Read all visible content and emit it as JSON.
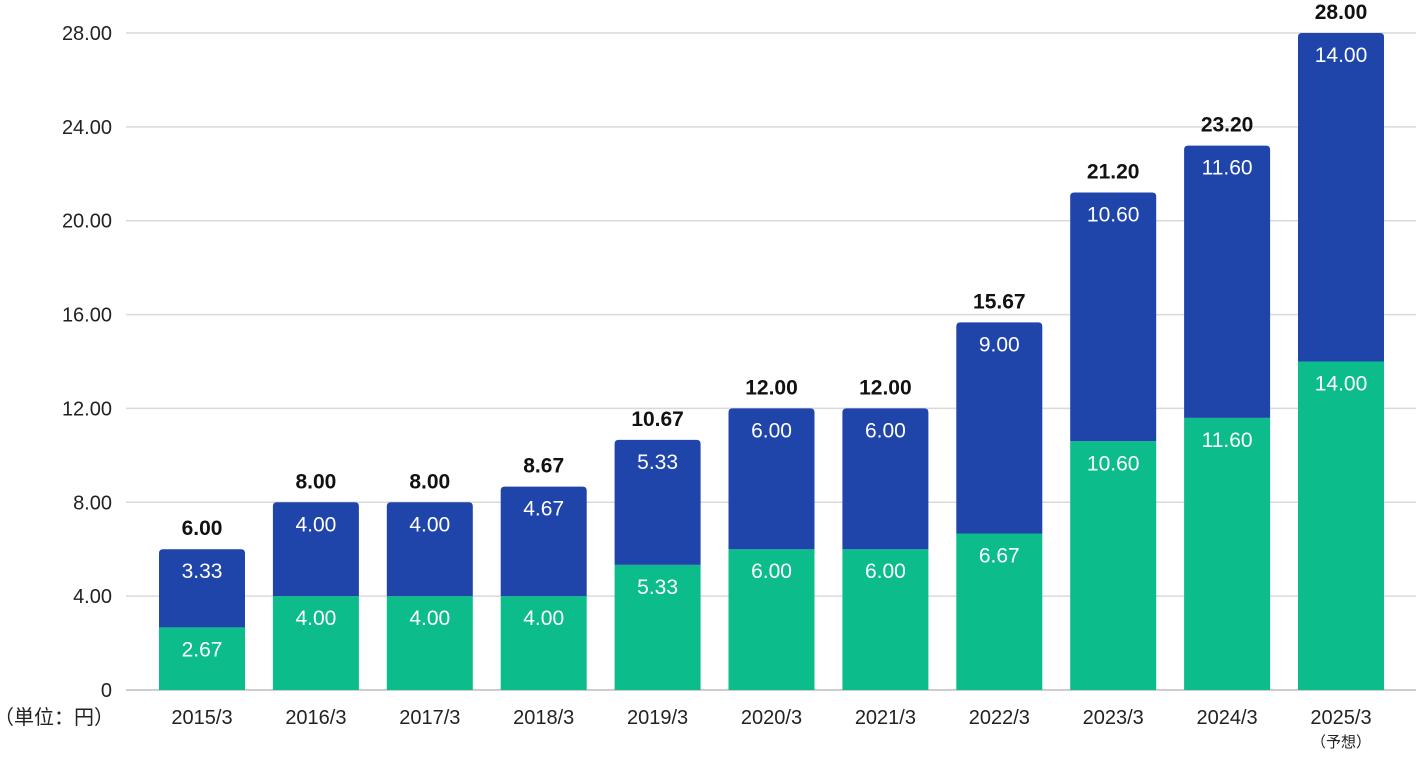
{
  "chart_data": {
    "type": "bar",
    "stacked": true,
    "unit_label": "（単位：円）",
    "categories": [
      "2015/3",
      "2016/3",
      "2017/3",
      "2018/3",
      "2019/3",
      "2020/3",
      "2021/3",
      "2022/3",
      "2023/3",
      "2024/3",
      "2025/3"
    ],
    "category_notes": [
      "",
      "",
      "",
      "",
      "",
      "",
      "",
      "",
      "",
      "",
      "（予想）"
    ],
    "series": [
      {
        "values": [
          2.67,
          4.0,
          4.0,
          4.0,
          5.33,
          6.0,
          6.0,
          6.67,
          10.6,
          11.6,
          14.0
        ],
        "color": "#0cbd8b"
      },
      {
        "values": [
          3.33,
          4.0,
          4.0,
          4.67,
          5.33,
          6.0,
          6.0,
          9.0,
          10.6,
          11.6,
          14.0
        ],
        "color": "#1f45ab"
      }
    ],
    "segment_labels": [
      [
        "2.67",
        "4.00",
        "4.00",
        "4.00",
        "5.33",
        "6.00",
        "6.00",
        "6.67",
        "10.60",
        "11.60",
        "14.00"
      ],
      [
        "3.33",
        "4.00",
        "4.00",
        "4.67",
        "5.33",
        "6.00",
        "6.00",
        "9.00",
        "10.60",
        "11.60",
        "14.00"
      ]
    ],
    "totals": [
      "6.00",
      "8.00",
      "8.00",
      "8.67",
      "10.67",
      "12.00",
      "12.00",
      "15.67",
      "21.20",
      "23.20",
      "28.00"
    ],
    "y_ticks": [
      0,
      4,
      8,
      12,
      16,
      20,
      24,
      28
    ],
    "y_tick_labels": [
      "0",
      "4.00",
      "8.00",
      "12.00",
      "16.00",
      "20.00",
      "24.00",
      "28.00"
    ],
    "ylim": [
      0,
      28
    ],
    "grid": true,
    "title": "",
    "xlabel": "",
    "ylabel": ""
  }
}
